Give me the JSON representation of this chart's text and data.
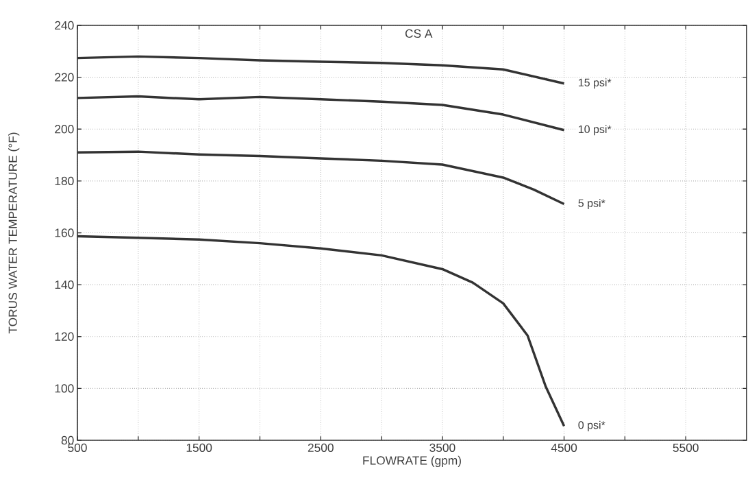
{
  "chart_data": {
    "type": "line",
    "title": "CS A",
    "xlabel": "FLOWRATE (gpm)",
    "ylabel": "TORUS WATER TEMPERATURE (°F)",
    "xlim": [
      500,
      6000
    ],
    "ylim": [
      80,
      240
    ],
    "xticks": [
      500,
      {
        "value": 1000,
        "label": null
      },
      1500,
      {
        "value": 2000,
        "label": null
      },
      2500,
      {
        "value": 3000,
        "label": null
      },
      3500,
      {
        "value": 4000,
        "label": null
      },
      4500,
      {
        "value": 5000,
        "label": null
      },
      5500
    ],
    "yticks": [
      80,
      100,
      120,
      140,
      160,
      180,
      200,
      220,
      240
    ],
    "grid": true,
    "marker": "none",
    "line_style": "solid",
    "series": [
      {
        "name": "15 psi*",
        "color": "#333333",
        "x": [
          500,
          1000,
          1500,
          2000,
          2500,
          3000,
          3500,
          4000,
          4500
        ],
        "values": [
          227.4,
          228,
          227.4,
          226.5,
          226,
          225.5,
          224.6,
          223,
          217.6
        ]
      },
      {
        "name": "10 psi*",
        "color": "#333333",
        "x": [
          500,
          1000,
          1500,
          2000,
          2500,
          3000,
          3500,
          4000,
          4500
        ],
        "values": [
          212,
          212.6,
          211.5,
          212.4,
          211.5,
          210.6,
          209.3,
          205.6,
          199.6
        ]
      },
      {
        "name": "5 psi*",
        "color": "#333333",
        "x": [
          500,
          1000,
          1500,
          2000,
          2500,
          3000,
          3500,
          4000,
          4250,
          4500
        ],
        "values": [
          191,
          191.3,
          190.2,
          189.6,
          188.7,
          187.8,
          186.3,
          181.3,
          176.7,
          171.1
        ]
      },
      {
        "name": "0 psi*",
        "color": "#333333",
        "x": [
          500,
          1000,
          1500,
          2000,
          2500,
          3000,
          3500,
          3750,
          4000,
          4200,
          4350,
          4500
        ],
        "values": [
          158.7,
          158.1,
          157.4,
          156,
          154,
          151.3,
          146,
          140.8,
          132.8,
          120.4,
          100.6,
          85.5
        ]
      }
    ]
  }
}
